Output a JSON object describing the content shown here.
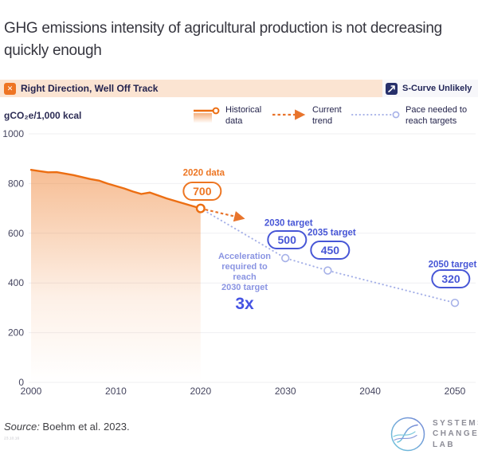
{
  "title": "GHG emissions intensity of agricultural production is not decreasing quickly enough",
  "status_banner": {
    "left_label": "Right Direction, Well Off Track",
    "left_icon": "x-icon",
    "right_label": "S-Curve Unlikely",
    "right_icon": "s-curve-icon"
  },
  "legend": [
    {
      "label": "Historical data"
    },
    {
      "label": "Current trend"
    },
    {
      "label": "Pace needed to reach targets"
    }
  ],
  "colors": {
    "orange": "#EC6E12",
    "orange_label": "#ED7623",
    "blue": "#4756D6",
    "pale_blue": "#A6B1E8",
    "banner_peach": "#FBE4D2",
    "navy": "#22224E",
    "grid": "#EFEFF2",
    "axis_text": "#45455F"
  },
  "chart_data": {
    "type": "line",
    "title": "GHG emissions intensity of agricultural production",
    "unit_label": "gCO₂e/1,000 kcal",
    "xlabel": "",
    "ylabel": "gCO2e/1,000 kcal",
    "x_ticks": [
      2000,
      2010,
      2020,
      2030,
      2040,
      2050
    ],
    "y_ticks": [
      0,
      200,
      400,
      600,
      800,
      1000
    ],
    "xlim": [
      2000,
      2050
    ],
    "ylim": [
      0,
      1000
    ],
    "grid": "horizontal-only",
    "legend_position": "top-right",
    "series": [
      {
        "name": "Historical data",
        "style": "solid-line-with-gradient-area",
        "x": [
          2000,
          2001,
          2002,
          2003,
          2004,
          2005,
          2006,
          2007,
          2008,
          2009,
          2010,
          2011,
          2012,
          2013,
          2014,
          2015,
          2016,
          2017,
          2018,
          2019,
          2020
        ],
        "values": [
          855,
          850,
          845,
          846,
          840,
          834,
          826,
          818,
          812,
          800,
          790,
          780,
          768,
          758,
          764,
          752,
          740,
          730,
          720,
          710,
          700
        ]
      },
      {
        "name": "Current trend",
        "style": "dashed-arrow",
        "x": [
          2020,
          2025
        ],
        "values": [
          700,
          660
        ]
      },
      {
        "name": "Pace needed to reach targets",
        "style": "dotted-with-markers",
        "x": [
          2020,
          2030,
          2035,
          2050
        ],
        "values": [
          700,
          500,
          450,
          320
        ]
      }
    ],
    "annotations": [
      {
        "label": "2020 data",
        "value": "700",
        "year": 2020,
        "v": 700,
        "color": "#ED7623",
        "dx": 2,
        "dy_pill": -22,
        "dy_label": -43
      },
      {
        "label": "2030 target",
        "value": "500",
        "year": 2030,
        "v": 500,
        "color": "#4756D6",
        "dx": 2,
        "dy_pill": -23,
        "dy_label": -42
      },
      {
        "label": "2035 target",
        "value": "450",
        "year": 2035,
        "v": 450,
        "color": "#4756D6",
        "dx": 3,
        "dy_pill": -26,
        "dy_label": -46
      },
      {
        "label": "2050 target",
        "value": "320",
        "year": 2050,
        "v": 320,
        "color": "#4756D6",
        "dx": -5,
        "dy_pill": -30,
        "dy_label": -46
      }
    ],
    "note": {
      "lines": [
        "Acceleration",
        "required to",
        "reach",
        "2030 target"
      ],
      "factor": "3x"
    }
  },
  "footer": {
    "source_prefix": "Source:",
    "source_text": " Boehm et al. 2023.",
    "stamp": "23.10.16",
    "logo_lines": [
      "SYSTEMS",
      "CHANGE",
      "LAB"
    ]
  }
}
